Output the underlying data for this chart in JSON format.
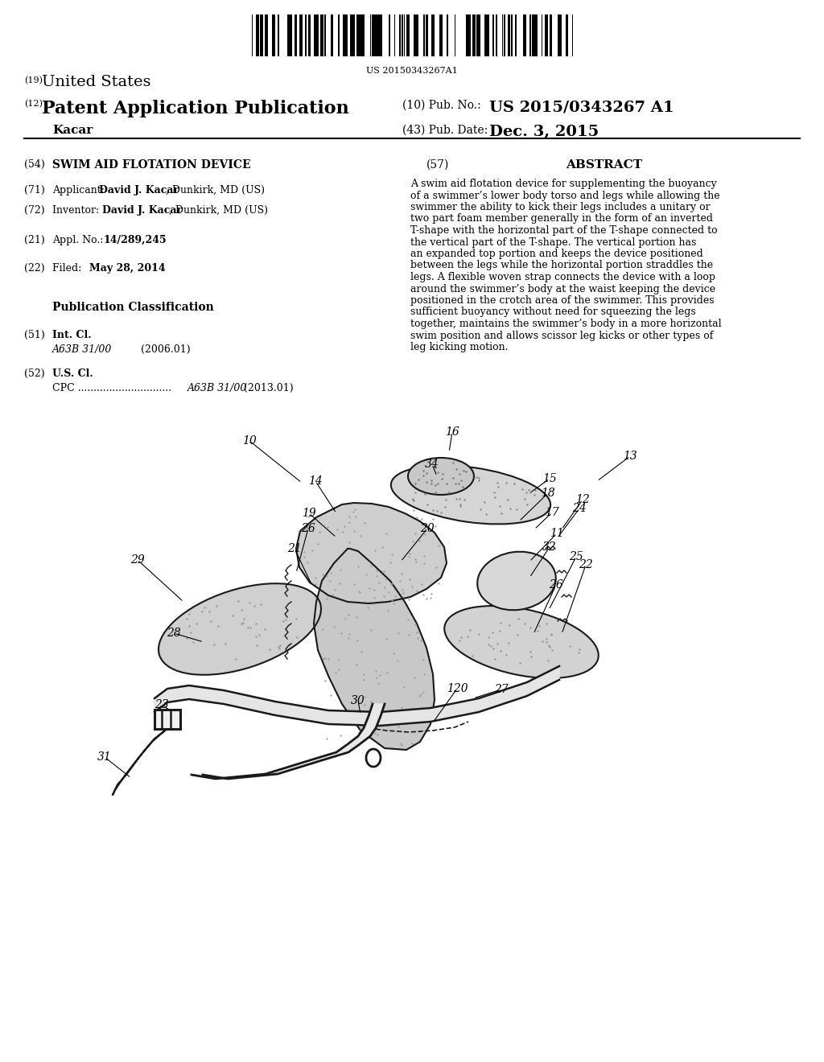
{
  "background_color": "#ffffff",
  "barcode_text": "US 20150343267A1",
  "title_19_prefix": "(19)",
  "title_19_text": "United States",
  "title_12_prefix": "(12)",
  "title_12_text": "Patent Application Publication",
  "inventor_name": "Kacar",
  "pub_no_label": "(10) Pub. No.:",
  "pub_no_value": "US 2015/0343267 A1",
  "pub_date_label": "(43) Pub. Date:",
  "pub_date_value": "Dec. 3, 2015",
  "field_54_value": "SWIM AID FLOTATION DEVICE",
  "field_71_bold": "David J. Kacar",
  "field_71_rest": ", Dunkirk, MD (US)",
  "field_72_bold": "David J. Kacar",
  "field_72_rest": ", Dunkirk, MD (US)",
  "field_21_bold": "14/289,245",
  "field_22_bold": "May 28, 2014",
  "pub_class_title": "Publication Classification",
  "field_51_italic": "A63B 31/00",
  "field_51_year": "(2006.01)",
  "field_52_italic": "A63B 31/00",
  "field_52_year": "(2013.01)",
  "abstract_label": "(57)",
  "abstract_title": "ABSTRACT",
  "abstract_text": "A swim aid flotation device for supplementing the buoyancy of a swimmer’s lower body torso and legs while allowing the swimmer the ability to kick their legs includes a unitary or two part foam member generally in the form of an inverted T-shape with the horizontal part of the T-shape connected to the vertical part of the T-shape. The vertical portion has an expanded top portion and keeps the device positioned between the legs while the horizontal portion straddles the legs. A flexible woven strap connects the device with a loop around the swimmer’s body at the waist keeping the device positioned in the crotch area of the swimmer. This provides sufficient buoyancy without need for squeezing the legs together, maintains the swimmer’s body in a more horizontal swim position and allows scissor leg kicks or other types of leg kicking motion.",
  "labels_with_arrows": [
    [
      "10",
      310,
      548,
      375,
      600
    ],
    [
      "16",
      562,
      537,
      558,
      562
    ],
    [
      "13",
      783,
      567,
      742,
      598
    ],
    [
      "14",
      392,
      598,
      418,
      638
    ],
    [
      "34",
      537,
      577,
      543,
      592
    ],
    [
      "15",
      683,
      595,
      658,
      613
    ],
    [
      "18",
      681,
      613,
      645,
      648
    ],
    [
      "12",
      724,
      621,
      698,
      658
    ],
    [
      "19",
      384,
      638,
      418,
      668
    ],
    [
      "17",
      686,
      637,
      664,
      658
    ],
    [
      "24",
      720,
      632,
      693,
      668
    ],
    [
      "26",
      383,
      657,
      368,
      712
    ],
    [
      "20",
      531,
      657,
      498,
      698
    ],
    [
      "11",
      692,
      663,
      658,
      698
    ],
    [
      "21",
      366,
      682,
      388,
      728
    ],
    [
      "32",
      683,
      680,
      658,
      718
    ],
    [
      "25",
      716,
      692,
      682,
      758
    ],
    [
      "22",
      728,
      702,
      698,
      788
    ],
    [
      "26",
      691,
      727,
      663,
      788
    ],
    [
      "29",
      171,
      696,
      228,
      748
    ],
    [
      "28",
      216,
      787,
      253,
      798
    ],
    [
      "27",
      623,
      857,
      588,
      868
    ],
    [
      "120",
      568,
      856,
      538,
      898
    ],
    [
      "30",
      445,
      871,
      448,
      888
    ],
    [
      "23",
      201,
      876,
      213,
      884
    ],
    [
      "31",
      130,
      941,
      163,
      967
    ]
  ]
}
